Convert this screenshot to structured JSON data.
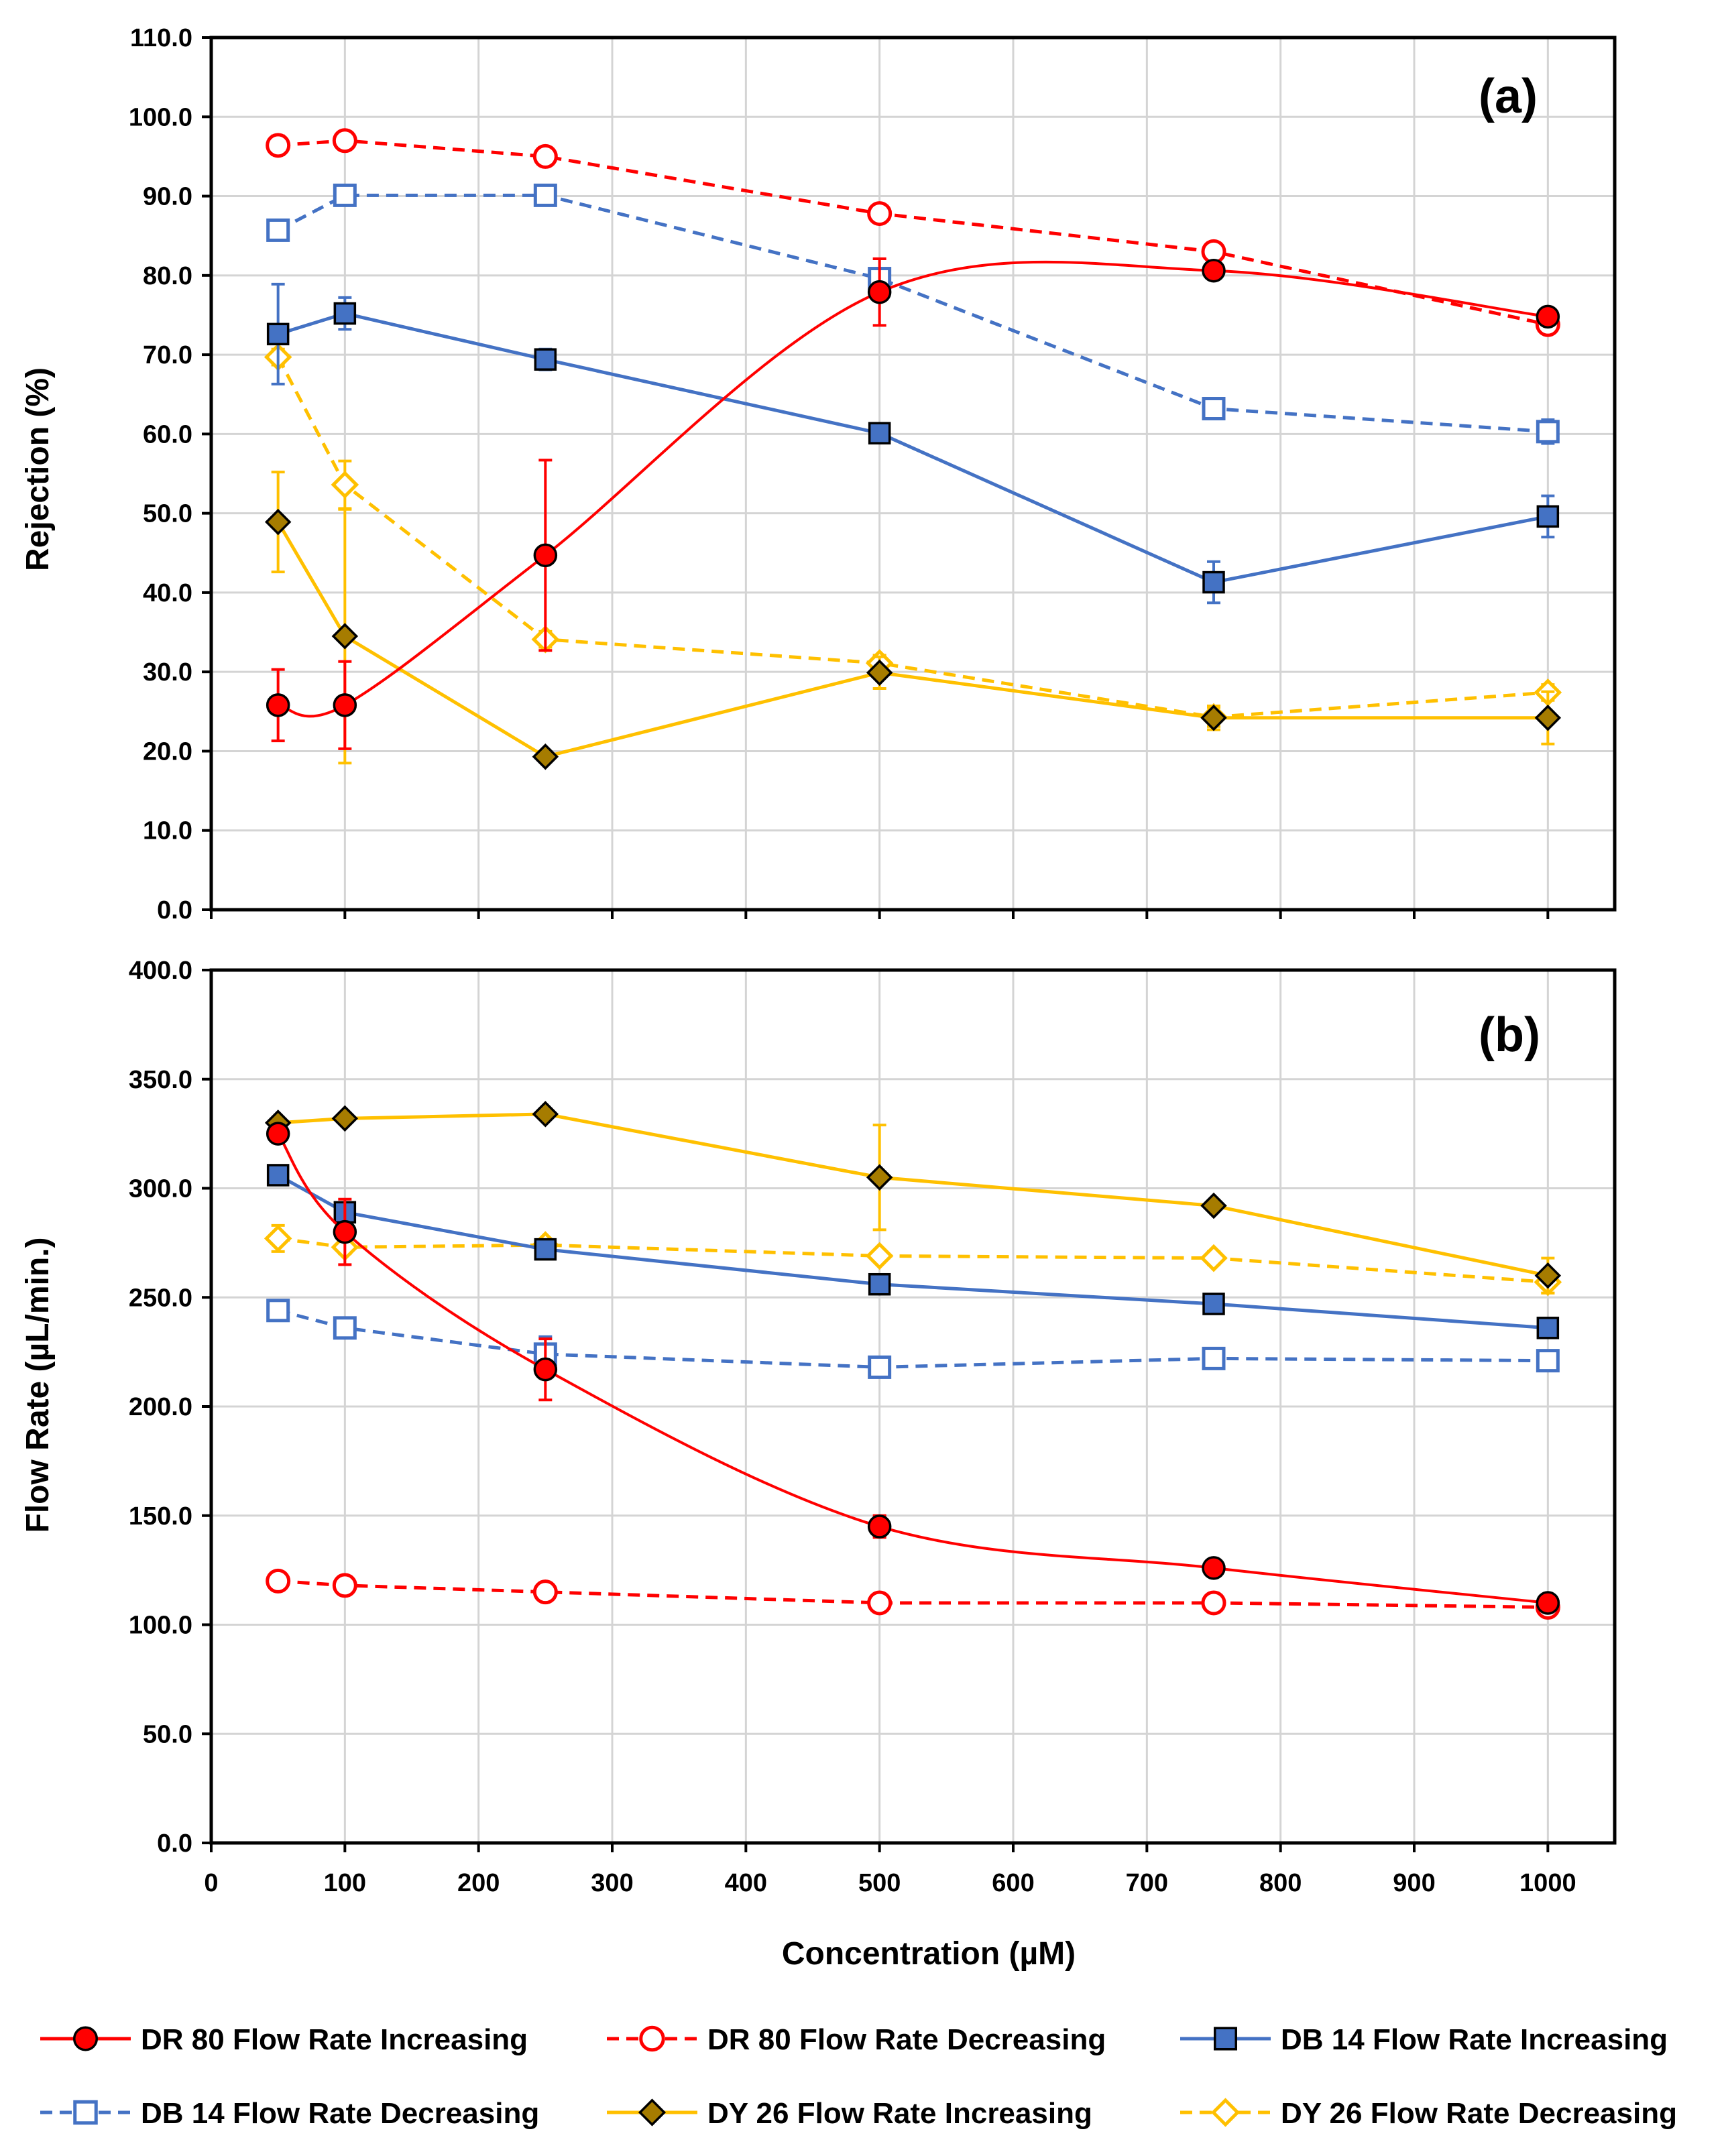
{
  "colors": {
    "dr80": "#ff0000",
    "db14": "#4472c4",
    "dy26": "#ffc000",
    "db14_fill": "#4472c4",
    "dy26_fill": "#a67c00",
    "dr80_fill": "#ff0000"
  },
  "chart_data": [
    {
      "type": "line",
      "panel_label": "(a)",
      "title": "",
      "xlabel": "",
      "ylabel": "Rejection (%)",
      "xlim": [
        0,
        1050
      ],
      "ylim": [
        0,
        110
      ],
      "x_ticks": [
        0,
        100,
        200,
        300,
        400,
        500,
        600,
        700,
        800,
        900,
        1000
      ],
      "y_ticks": [
        "0.0",
        "10.0",
        "20.0",
        "30.0",
        "40.0",
        "50.0",
        "60.0",
        "70.0",
        "80.0",
        "90.0",
        "100.0",
        "110.0"
      ],
      "grid": true,
      "series": [
        {
          "name": "DR 80 Flow Rate Increasing",
          "key": "dr80_inc",
          "color": "#ff0000",
          "marker": "circle",
          "filled": true,
          "dashed": false,
          "smooth": true,
          "x": [
            50,
            100,
            250,
            500,
            750,
            1000
          ],
          "y": [
            25.8,
            25.8,
            44.7,
            77.9,
            80.6,
            74.8
          ],
          "err": [
            4.5,
            5.5,
            12.0,
            4.2,
            0.8,
            0.8
          ]
        },
        {
          "name": "DR 80 Flow Rate Decreasing",
          "key": "dr80_dec",
          "color": "#ff0000",
          "marker": "circle",
          "filled": false,
          "dashed": true,
          "smooth": false,
          "x": [
            50,
            100,
            250,
            500,
            750,
            1000
          ],
          "y": [
            96.4,
            97.0,
            95.0,
            87.8,
            83.0,
            73.8
          ],
          "err": [
            1.2,
            0.5,
            0.4,
            0.4,
            0.4,
            0.4
          ]
        },
        {
          "name": "DB 14 Flow Rate Increasing",
          "key": "db14_inc",
          "color": "#4472c4",
          "marker": "square",
          "filled": true,
          "dashed": false,
          "smooth": false,
          "x": [
            50,
            100,
            250,
            500,
            750,
            1000
          ],
          "y": [
            72.6,
            75.2,
            69.4,
            60.1,
            41.3,
            49.6
          ],
          "err": [
            6.3,
            2.0,
            1.3,
            0.5,
            2.6,
            2.6
          ]
        },
        {
          "name": "DB 14 Flow Rate Decreasing",
          "key": "db14_dec",
          "color": "#4472c4",
          "marker": "square",
          "filled": false,
          "dashed": true,
          "smooth": false,
          "x": [
            50,
            100,
            250,
            500,
            750,
            1000
          ],
          "y": [
            85.7,
            90.1,
            90.1,
            79.6,
            63.2,
            60.3
          ],
          "err": [
            0.4,
            0.4,
            0.4,
            0.4,
            0.4,
            1.5
          ]
        },
        {
          "name": "DY 26 Flow Rate Increasing",
          "key": "dy26_inc",
          "color": "#ffc000",
          "marker": "diamond",
          "filled": true,
          "dashed": false,
          "smooth": false,
          "x": [
            50,
            100,
            250,
            500,
            750,
            1000
          ],
          "y": [
            48.9,
            34.5,
            19.3,
            29.9,
            24.2,
            24.2
          ],
          "err": [
            6.3,
            16.0,
            0.3,
            2.0,
            1.5,
            3.3
          ]
        },
        {
          "name": "DY 26 Flow Rate Decreasing",
          "key": "dy26_dec",
          "color": "#ffc000",
          "marker": "diamond",
          "filled": false,
          "dashed": true,
          "smooth": false,
          "x": [
            50,
            100,
            250,
            500,
            750,
            1000
          ],
          "y": [
            69.7,
            53.6,
            34.1,
            31.1,
            24.3,
            27.4
          ],
          "err": [
            1.0,
            3.0,
            1.0,
            1.0,
            1.2,
            1.0
          ]
        }
      ]
    },
    {
      "type": "line",
      "panel_label": "(b)",
      "title": "",
      "xlabel": "Concentration (µM)",
      "ylabel": "Flow Rate (µL/min.)",
      "xlim": [
        0,
        1050
      ],
      "ylim": [
        0,
        400
      ],
      "x_ticks": [
        0,
        100,
        200,
        300,
        400,
        500,
        600,
        700,
        800,
        900,
        1000
      ],
      "y_ticks": [
        "0.0",
        "50.0",
        "100.0",
        "150.0",
        "200.0",
        "250.0",
        "300.0",
        "350.0",
        "400.0"
      ],
      "grid": true,
      "series": [
        {
          "name": "DR 80 Flow Rate Increasing",
          "key": "dr80_inc",
          "color": "#ff0000",
          "marker": "circle",
          "filled": true,
          "dashed": false,
          "smooth": true,
          "x": [
            50,
            100,
            250,
            500,
            750,
            1000
          ],
          "y": [
            325,
            280,
            217,
            145,
            126,
            110
          ],
          "err": [
            3,
            15,
            14,
            5,
            2,
            2
          ]
        },
        {
          "name": "DR 80 Flow Rate Decreasing",
          "key": "dr80_dec",
          "color": "#ff0000",
          "marker": "circle",
          "filled": false,
          "dashed": true,
          "smooth": false,
          "x": [
            50,
            100,
            250,
            500,
            750,
            1000
          ],
          "y": [
            120,
            118,
            115,
            110,
            110,
            108
          ],
          "err": [
            1,
            1,
            1,
            1,
            1,
            1
          ]
        },
        {
          "name": "DB 14 Flow Rate Increasing",
          "key": "db14_inc",
          "color": "#4472c4",
          "marker": "square",
          "filled": true,
          "dashed": false,
          "smooth": false,
          "x": [
            50,
            100,
            250,
            500,
            750,
            1000
          ],
          "y": [
            306,
            289,
            272,
            256,
            247,
            236
          ],
          "err": [
            2,
            3,
            2,
            2,
            2,
            2
          ]
        },
        {
          "name": "DB 14 Flow Rate Decreasing",
          "key": "db14_dec",
          "color": "#4472c4",
          "marker": "square",
          "filled": false,
          "dashed": true,
          "smooth": false,
          "x": [
            50,
            100,
            250,
            500,
            750,
            1000
          ],
          "y": [
            244,
            236,
            224,
            218,
            222,
            221
          ],
          "err": [
            1,
            1,
            8,
            1,
            1,
            1
          ]
        },
        {
          "name": "DY 26 Flow Rate Increasing",
          "key": "dy26_inc",
          "color": "#ffc000",
          "marker": "diamond",
          "filled": true,
          "dashed": false,
          "smooth": false,
          "x": [
            50,
            100,
            250,
            500,
            750,
            1000
          ],
          "y": [
            330,
            332,
            334,
            305,
            292,
            260
          ],
          "err": [
            2,
            2,
            2,
            24,
            2,
            8
          ]
        },
        {
          "name": "DY 26 Flow Rate Decreasing",
          "key": "dy26_dec",
          "color": "#ffc000",
          "marker": "diamond",
          "filled": false,
          "dashed": true,
          "smooth": false,
          "x": [
            50,
            100,
            250,
            500,
            750,
            1000
          ],
          "y": [
            277,
            273,
            274,
            269,
            268,
            257
          ],
          "err": [
            6,
            3,
            2,
            2,
            3,
            5
          ]
        }
      ]
    }
  ],
  "legend": {
    "placement": "bottom",
    "entries": [
      "DR 80 Flow Rate Increasing",
      "DR 80 Flow Rate Decreasing",
      "DB 14 Flow Rate Increasing",
      "DB 14 Flow Rate Decreasing",
      "DY 26 Flow Rate Increasing",
      "DY 26 Flow Rate Decreasing"
    ]
  }
}
